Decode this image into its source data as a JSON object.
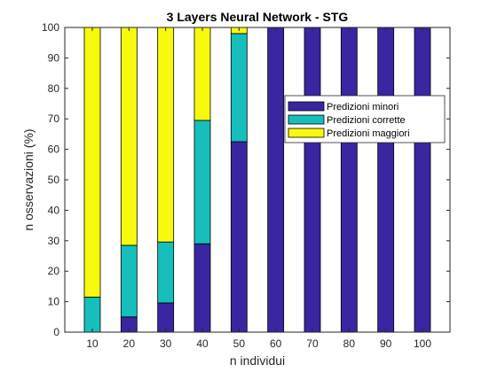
{
  "chart_data": {
    "type": "bar",
    "stacked": true,
    "title": "3 Layers Neural Network - STG",
    "xlabel": "n individui",
    "ylabel": "n osservazioni (%)",
    "categories": [
      "10",
      "20",
      "30",
      "40",
      "50",
      "60",
      "70",
      "80",
      "90",
      "100"
    ],
    "ylim": [
      0,
      100
    ],
    "yticks": [
      "0",
      "10",
      "20",
      "30",
      "40",
      "50",
      "60",
      "70",
      "80",
      "90",
      "100"
    ],
    "grid": false,
    "legend_position": "top-right",
    "series": [
      {
        "name": "Predizioni minori",
        "color": "#3a26a0",
        "values": [
          0,
          5,
          9.6,
          29,
          62.5,
          100,
          100,
          100,
          100,
          100
        ]
      },
      {
        "name": "Predizioni corrette",
        "color": "#17bebb",
        "values": [
          11.5,
          23.5,
          20,
          40.5,
          35.5,
          0,
          0,
          0,
          0,
          0
        ]
      },
      {
        "name": "Predizioni maggiori",
        "color": "#f8fa0d",
        "values": [
          88.5,
          71.5,
          70.4,
          30.5,
          2,
          0,
          0,
          0,
          0,
          0
        ]
      }
    ]
  }
}
